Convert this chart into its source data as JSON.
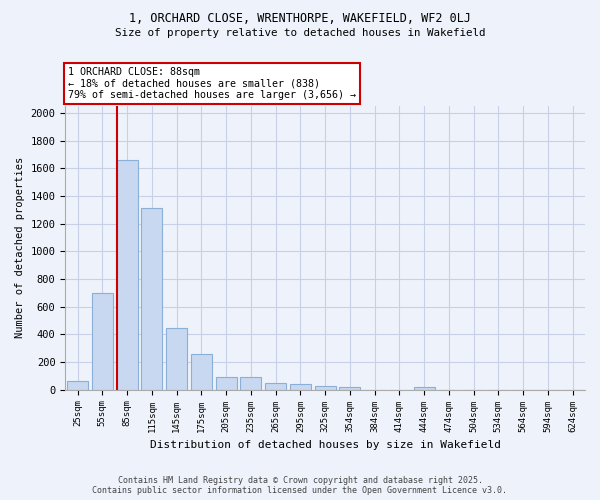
{
  "title_line1": "1, ORCHARD CLOSE, WRENTHORPE, WAKEFIELD, WF2 0LJ",
  "title_line2": "Size of property relative to detached houses in Wakefield",
  "xlabel": "Distribution of detached houses by size in Wakefield",
  "ylabel": "Number of detached properties",
  "categories": [
    "25sqm",
    "55sqm",
    "85sqm",
    "115sqm",
    "145sqm",
    "175sqm",
    "205sqm",
    "235sqm",
    "265sqm",
    "295sqm",
    "325sqm",
    "354sqm",
    "384sqm",
    "414sqm",
    "444sqm",
    "474sqm",
    "504sqm",
    "534sqm",
    "564sqm",
    "594sqm",
    "624sqm"
  ],
  "values": [
    65,
    700,
    1660,
    1310,
    445,
    255,
    90,
    90,
    50,
    40,
    27,
    22,
    0,
    0,
    18,
    0,
    0,
    0,
    0,
    0,
    0
  ],
  "bar_color": "#c8d8f0",
  "bar_edge_color": "#8ab0d8",
  "red_line_bin": 2,
  "annotation_line1": "1 ORCHARD CLOSE: 88sqm",
  "annotation_line2": "← 18% of detached houses are smaller (838)",
  "annotation_line3": "79% of semi-detached houses are larger (3,656) →",
  "annotation_box_color": "#ffffff",
  "annotation_border_color": "#cc0000",
  "ylim": [
    0,
    2050
  ],
  "yticks": [
    0,
    200,
    400,
    600,
    800,
    1000,
    1200,
    1400,
    1600,
    1800,
    2000
  ],
  "footer_line1": "Contains HM Land Registry data © Crown copyright and database right 2025.",
  "footer_line2": "Contains public sector information licensed under the Open Government Licence v3.0.",
  "bg_color": "#eef2fa",
  "grid_color": "#c8d0e8"
}
